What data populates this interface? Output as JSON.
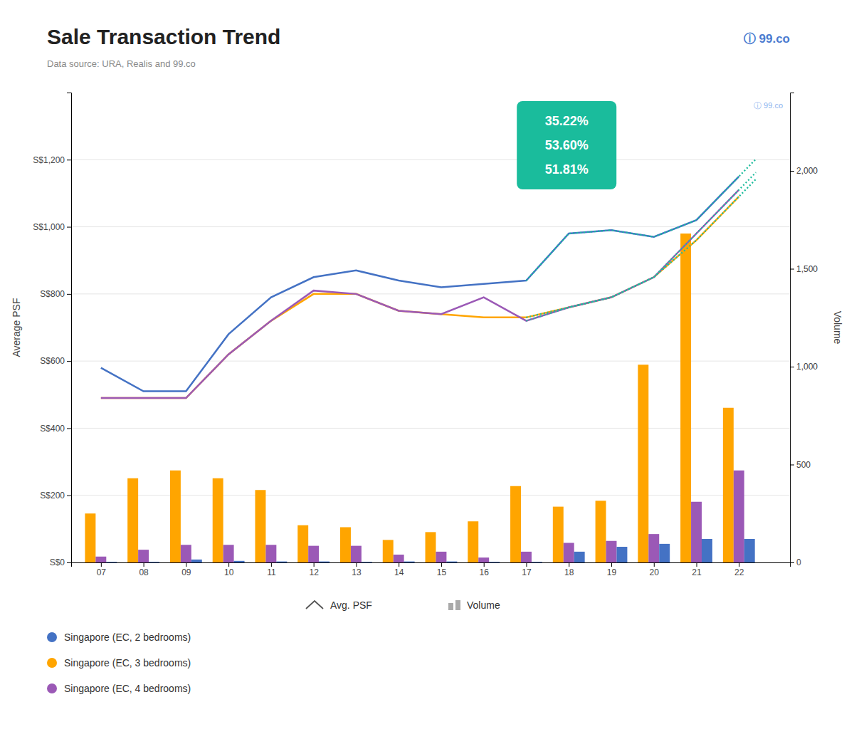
{
  "chart_data": {
    "type": "combo",
    "title": "Sale Transaction Trend",
    "subtitle": "Data source: URA, Realis and 99.co",
    "logo": "ⓘ 99.co",
    "watermark": "ⓘ 99.co",
    "x": [
      7,
      8,
      9,
      10,
      11,
      12,
      13,
      14,
      15,
      16,
      17,
      18,
      19,
      20,
      21,
      22
    ],
    "xlim": [
      6.3,
      23.2
    ],
    "xticks": [
      {
        "value": 7,
        "label": "07"
      },
      {
        "value": 8,
        "label": "08"
      },
      {
        "value": 9,
        "label": "09"
      },
      10,
      11,
      12,
      13,
      14,
      15,
      16,
      17,
      18,
      19,
      20,
      21,
      22
    ],
    "ylabel": "Average PSF",
    "ylim": [
      0,
      1400
    ],
    "yticks": [
      {
        "value": 0,
        "label": "S$0"
      },
      {
        "value": 200,
        "label": "S$200"
      },
      {
        "value": 400,
        "label": "S$400"
      },
      {
        "value": 600,
        "label": "S$600"
      },
      {
        "value": 800,
        "label": "S$800"
      },
      {
        "value": 1000,
        "label": "S$1,000"
      },
      {
        "value": 1200,
        "label": "S$1,200"
      }
    ],
    "y2label": "Volume",
    "y2lim": [
      0,
      2400
    ],
    "y2ticks": [
      0,
      500,
      {
        "value": 1000,
        "label": "1,000"
      },
      {
        "value": 1500,
        "label": "1,500"
      },
      {
        "value": 2000,
        "label": "2,000"
      }
    ],
    "grid": true,
    "legend": "bottom",
    "legend_labels": [
      "Avg. PSF",
      "Volume"
    ],
    "annotations": [
      {
        "lines": [
          "35.22%",
          "53.60%",
          "51.81%"
        ],
        "color": "#1abc9c"
      }
    ],
    "series": [
      {
        "name": "Singapore (EC, 3 bedrooms)",
        "type": "bar",
        "axis": "y2",
        "color": "#FFA500",
        "values": [
          250,
          430,
          470,
          430,
          370,
          190,
          180,
          115,
          155,
          210,
          390,
          285,
          315,
          1010,
          1680,
          790
        ]
      },
      {
        "name": "Singapore (EC, 4 bedrooms)",
        "type": "bar",
        "axis": "y2",
        "color": "#9B59B6",
        "values": [
          30,
          65,
          90,
          90,
          90,
          85,
          85,
          40,
          55,
          25,
          55,
          100,
          110,
          145,
          310,
          470
        ]
      },
      {
        "name": "Singapore (EC, 2 bedrooms)",
        "type": "bar",
        "axis": "y2",
        "color": "#4472C4",
        "values": [
          3,
          3,
          15,
          8,
          5,
          5,
          3,
          5,
          5,
          3,
          3,
          55,
          80,
          95,
          120,
          120
        ]
      },
      {
        "name": "Singapore (EC, 2 bedrooms)",
        "type": "line",
        "axis": "y",
        "color": "#4472C4",
        "line_style": "solid",
        "values": [
          580,
          510,
          510,
          680,
          790,
          850,
          870,
          840,
          820,
          830,
          840,
          980,
          990,
          970,
          1020,
          1150
        ]
      },
      {
        "name": "Singapore (EC, 3 bedrooms)",
        "type": "line",
        "axis": "y",
        "color": "#FFA500",
        "line_style": "solid",
        "values": [
          490,
          490,
          490,
          620,
          720,
          800,
          800,
          750,
          740,
          730,
          730,
          760,
          790,
          850,
          960,
          1090
        ]
      },
      {
        "name": "Singapore (EC, 4 bedrooms)",
        "type": "line",
        "axis": "y",
        "color": "#9B59B6",
        "line_style": "solid",
        "values": [
          490,
          490,
          490,
          620,
          720,
          810,
          800,
          750,
          740,
          790,
          720,
          760,
          790,
          850,
          980,
          1110
        ]
      },
      {
        "type": "line",
        "axis": "y",
        "color": "#1abc9c",
        "line_style": "dotted",
        "x": [
          17,
          18,
          19,
          20,
          21,
          22,
          22.4
        ],
        "values": [
          840,
          980,
          990,
          970,
          1020,
          1150,
          1202
        ]
      },
      {
        "type": "line",
        "axis": "y",
        "color": "#1abc9c",
        "line_style": "dotted",
        "x": [
          17,
          18,
          19,
          20,
          21,
          22,
          22.4
        ],
        "values": [
          730,
          760,
          790,
          850,
          960,
          1090,
          1142
        ]
      },
      {
        "type": "line",
        "axis": "y",
        "color": "#1abc9c",
        "line_style": "dotted",
        "x": [
          17,
          18,
          19,
          20,
          21,
          22,
          22.4
        ],
        "values": [
          720,
          760,
          790,
          850,
          980,
          1110,
          1162
        ]
      }
    ]
  }
}
